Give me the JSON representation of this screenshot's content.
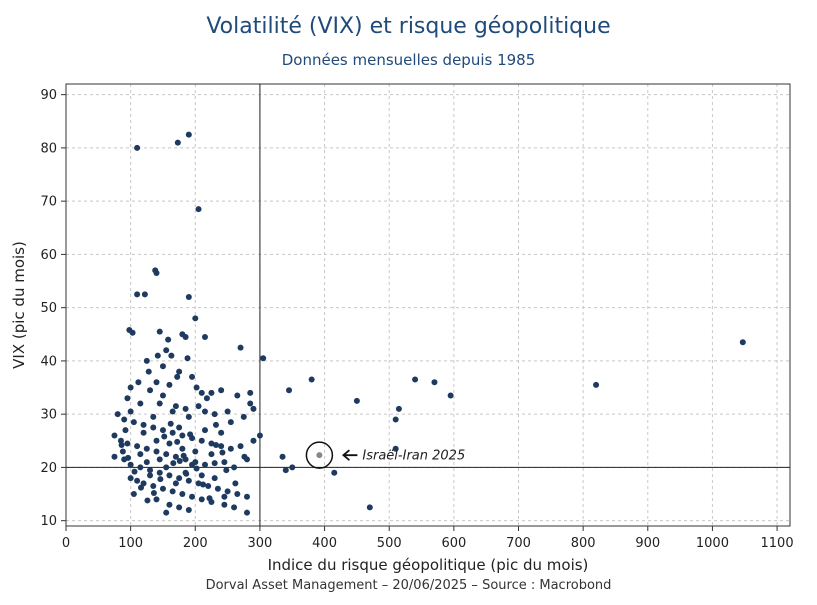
{
  "chart_data": {
    "type": "scatter",
    "title": "Volatilité (VIX) et risque géopolitique",
    "subtitle": "Données mensuelles depuis 1985",
    "xlabel": "Indice du risque géopolitique (pic du mois)",
    "ylabel": "VIX (pic du mois)",
    "xlim": [
      0,
      1120
    ],
    "ylim": [
      9,
      92
    ],
    "xticks": [
      0,
      100,
      200,
      300,
      400,
      500,
      600,
      700,
      800,
      900,
      1000,
      1100
    ],
    "yticks": [
      10,
      20,
      30,
      40,
      50,
      60,
      70,
      80,
      90
    ],
    "grid": true,
    "reference_lines": {
      "x": 300,
      "y": 20
    },
    "colors": {
      "points": "#1f3a5f",
      "highlight": "#888888",
      "title": "#1f4a7a"
    },
    "highlight": {
      "label": "Israël-Iran 2025",
      "x": 392,
      "y": 22.3
    },
    "points": [
      [
        110,
        80
      ],
      [
        173,
        81
      ],
      [
        190,
        82.5
      ],
      [
        205,
        68.5
      ],
      [
        138,
        57
      ],
      [
        140,
        56.5
      ],
      [
        110,
        52.5
      ],
      [
        122,
        52.5
      ],
      [
        190,
        52
      ],
      [
        200,
        48
      ],
      [
        185,
        44.5
      ],
      [
        98,
        45.8
      ],
      [
        103,
        45.3
      ],
      [
        145,
        45.5
      ],
      [
        180,
        45
      ],
      [
        215,
        44.5
      ],
      [
        155,
        42
      ],
      [
        163,
        41
      ],
      [
        270,
        42.5
      ],
      [
        305,
        40.5
      ],
      [
        125,
        40
      ],
      [
        150,
        39
      ],
      [
        175,
        38
      ],
      [
        195,
        37
      ],
      [
        140,
        36
      ],
      [
        160,
        35.5
      ],
      [
        100,
        35
      ],
      [
        130,
        34.5
      ],
      [
        210,
        34
      ],
      [
        225,
        34
      ],
      [
        240,
        34.5
      ],
      [
        265,
        33.5
      ],
      [
        285,
        34
      ],
      [
        345,
        34.5
      ],
      [
        380,
        36.5
      ],
      [
        540,
        36.5
      ],
      [
        570,
        36
      ],
      [
        595,
        33.5
      ],
      [
        820,
        35.5
      ],
      [
        1047,
        43.5
      ],
      [
        450,
        32.5
      ],
      [
        515,
        31
      ],
      [
        510,
        29
      ],
      [
        285,
        32
      ],
      [
        290,
        31
      ],
      [
        95,
        33
      ],
      [
        115,
        32
      ],
      [
        145,
        32
      ],
      [
        170,
        31.5
      ],
      [
        185,
        31
      ],
      [
        215,
        30.5
      ],
      [
        230,
        30
      ],
      [
        250,
        30.5
      ],
      [
        275,
        29.5
      ],
      [
        80,
        30
      ],
      [
        90,
        29
      ],
      [
        105,
        28.5
      ],
      [
        120,
        28
      ],
      [
        135,
        27.5
      ],
      [
        150,
        27
      ],
      [
        165,
        26.5
      ],
      [
        180,
        26
      ],
      [
        195,
        25.5
      ],
      [
        210,
        25
      ],
      [
        225,
        24.5
      ],
      [
        240,
        24
      ],
      [
        255,
        23.5
      ],
      [
        270,
        24
      ],
      [
        290,
        25
      ],
      [
        300,
        26
      ],
      [
        75,
        26
      ],
      [
        85,
        25
      ],
      [
        95,
        24.5
      ],
      [
        110,
        24
      ],
      [
        125,
        23.5
      ],
      [
        140,
        23
      ],
      [
        155,
        22.5
      ],
      [
        170,
        22
      ],
      [
        185,
        21.5
      ],
      [
        200,
        21
      ],
      [
        215,
        20.5
      ],
      [
        230,
        20.8
      ],
      [
        245,
        21
      ],
      [
        260,
        20
      ],
      [
        280,
        21.5
      ],
      [
        335,
        22
      ],
      [
        510,
        23.5
      ],
      [
        75,
        22
      ],
      [
        90,
        21.5
      ],
      [
        100,
        20.5
      ],
      [
        115,
        20
      ],
      [
        130,
        19.5
      ],
      [
        145,
        19
      ],
      [
        160,
        18.5
      ],
      [
        175,
        18
      ],
      [
        190,
        17.5
      ],
      [
        205,
        17
      ],
      [
        220,
        16.5
      ],
      [
        235,
        16
      ],
      [
        250,
        15.5
      ],
      [
        265,
        15
      ],
      [
        280,
        14.5
      ],
      [
        340,
        19.5
      ],
      [
        350,
        20
      ],
      [
        415,
        19
      ],
      [
        100,
        18
      ],
      [
        110,
        17.5
      ],
      [
        120,
        17
      ],
      [
        135,
        16.5
      ],
      [
        150,
        16
      ],
      [
        165,
        15.5
      ],
      [
        180,
        15
      ],
      [
        195,
        14.5
      ],
      [
        210,
        14
      ],
      [
        225,
        13.5
      ],
      [
        245,
        13
      ],
      [
        260,
        12.5
      ],
      [
        280,
        11.5
      ],
      [
        470,
        12.5
      ],
      [
        105,
        15
      ],
      [
        140,
        14
      ],
      [
        160,
        13
      ],
      [
        175,
        12.5
      ],
      [
        190,
        12
      ],
      [
        155,
        11.5
      ],
      [
        130,
        18.5
      ],
      [
        145,
        21.5
      ],
      [
        160,
        24.5
      ],
      [
        175,
        27.5
      ],
      [
        190,
        29.5
      ],
      [
        205,
        31.5
      ],
      [
        120,
        26.5
      ],
      [
        135,
        29.5
      ],
      [
        150,
        33.5
      ],
      [
        165,
        30.5
      ],
      [
        180,
        23.5
      ],
      [
        195,
        20.5
      ],
      [
        210,
        18.5
      ],
      [
        225,
        22.5
      ],
      [
        240,
        26.5
      ],
      [
        255,
        28.5
      ],
      [
        115,
        22.5
      ],
      [
        125,
        21
      ],
      [
        140,
        25
      ],
      [
        155,
        20
      ],
      [
        170,
        17
      ],
      [
        185,
        19
      ],
      [
        200,
        23
      ],
      [
        215,
        27
      ],
      [
        230,
        18
      ],
      [
        245,
        14.5
      ],
      [
        92,
        27
      ],
      [
        88,
        23
      ],
      [
        100,
        30.5
      ],
      [
        112,
        36
      ],
      [
        128,
        38
      ],
      [
        142,
        41
      ],
      [
        158,
        44
      ],
      [
        172,
        37
      ],
      [
        188,
        40.5
      ],
      [
        202,
        35
      ],
      [
        218,
        33
      ],
      [
        232,
        28
      ],
      [
        248,
        19.5
      ],
      [
        262,
        17
      ],
      [
        276,
        22
      ],
      [
        166,
        20.8
      ],
      [
        176,
        21.2
      ],
      [
        186,
        18.8
      ],
      [
        146,
        17.8
      ],
      [
        136,
        15.2
      ],
      [
        126,
        13.8
      ],
      [
        116,
        16.2
      ],
      [
        106,
        19.2
      ],
      [
        96,
        21.8
      ],
      [
        86,
        24.2
      ],
      [
        152,
        25.8
      ],
      [
        162,
        28.2
      ],
      [
        172,
        24.8
      ],
      [
        182,
        22.2
      ],
      [
        192,
        26.2
      ],
      [
        202,
        19.8
      ],
      [
        212,
        16.8
      ],
      [
        222,
        14.2
      ],
      [
        232,
        24.2
      ],
      [
        242,
        22.8
      ]
    ]
  },
  "footer": "Dorval Asset Management – 20/06/2025  –   Source : Macrobond"
}
